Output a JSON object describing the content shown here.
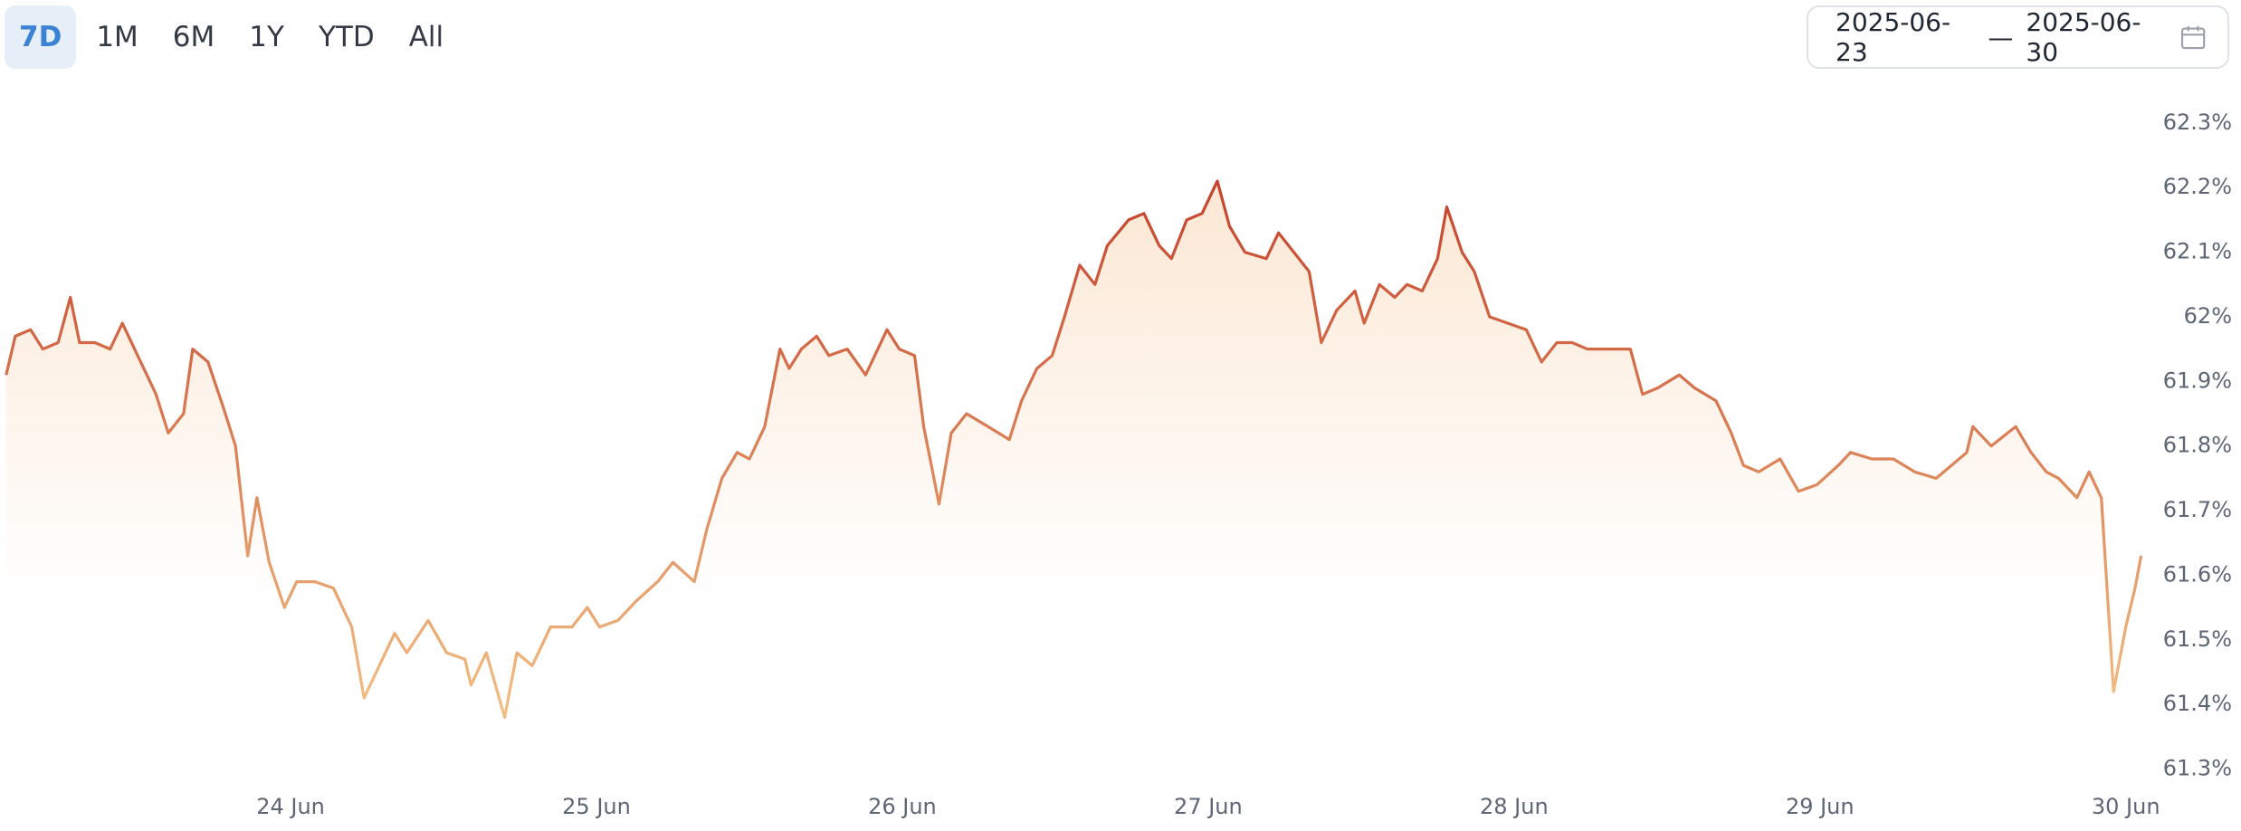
{
  "toolbar": {
    "ranges": [
      "7D",
      "1M",
      "6M",
      "1Y",
      "YTD",
      "All"
    ],
    "active": 0
  },
  "date_range": {
    "start": "2025-06-23",
    "separator": "—",
    "end": "2025-06-30"
  },
  "chart_data": {
    "type": "area",
    "x": [
      23.07,
      23.1,
      23.15,
      23.19,
      23.24,
      23.28,
      23.31,
      23.36,
      23.41,
      23.45,
      23.5,
      23.56,
      23.6,
      23.65,
      23.68,
      23.73,
      23.78,
      23.82,
      23.86,
      23.89,
      23.93,
      23.98,
      24.02,
      24.08,
      24.14,
      24.2,
      24.24,
      24.28,
      24.34,
      24.38,
      24.45,
      24.51,
      24.57,
      24.59,
      24.64,
      24.7,
      24.74,
      24.79,
      24.85,
      24.92,
      24.97,
      25.01,
      25.07,
      25.13,
      25.2,
      25.25,
      25.32,
      25.36,
      25.41,
      25.46,
      25.5,
      25.55,
      25.6,
      25.63,
      25.67,
      25.72,
      25.76,
      25.82,
      25.88,
      25.95,
      25.99,
      26.04,
      26.07,
      26.12,
      26.16,
      26.21,
      26.28,
      26.35,
      26.39,
      26.44,
      26.49,
      26.53,
      26.58,
      26.63,
      26.67,
      26.74,
      26.79,
      26.84,
      26.88,
      26.93,
      26.98,
      27.03,
      27.07,
      27.12,
      27.19,
      27.23,
      27.28,
      27.33,
      27.37,
      27.42,
      27.48,
      27.51,
      27.56,
      27.61,
      27.65,
      27.7,
      27.75,
      27.78,
      27.83,
      27.87,
      27.92,
      27.98,
      28.04,
      28.09,
      28.14,
      28.19,
      28.24,
      28.31,
      28.38,
      28.42,
      28.47,
      28.54,
      28.59,
      28.66,
      28.71,
      28.75,
      28.8,
      28.87,
      28.93,
      28.99,
      29.06,
      29.1,
      29.17,
      29.24,
      29.31,
      29.38,
      29.43,
      29.48,
      29.5,
      29.56,
      29.64,
      29.69,
      29.74,
      29.78,
      29.84,
      29.88,
      29.92,
      29.96,
      30.0,
      30.03,
      30.05
    ],
    "values": [
      61.91,
      61.97,
      61.98,
      61.95,
      61.96,
      62.03,
      61.96,
      61.96,
      61.95,
      61.99,
      61.94,
      61.88,
      61.82,
      61.85,
      61.95,
      61.93,
      61.86,
      61.8,
      61.63,
      61.72,
      61.62,
      61.55,
      61.59,
      61.59,
      61.58,
      61.52,
      61.41,
      61.45,
      61.51,
      61.48,
      61.53,
      61.48,
      61.47,
      61.43,
      61.48,
      61.38,
      61.48,
      61.46,
      61.52,
      61.52,
      61.55,
      61.52,
      61.53,
      61.56,
      61.59,
      61.62,
      61.59,
      61.67,
      61.75,
      61.79,
      61.78,
      61.83,
      61.95,
      61.92,
      61.95,
      61.97,
      61.94,
      61.95,
      61.91,
      61.98,
      61.95,
      61.94,
      61.83,
      61.71,
      61.82,
      61.85,
      61.83,
      61.81,
      61.87,
      61.92,
      61.94,
      62.0,
      62.08,
      62.05,
      62.11,
      62.15,
      62.16,
      62.11,
      62.09,
      62.15,
      62.16,
      62.21,
      62.14,
      62.1,
      62.09,
      62.13,
      62.1,
      62.07,
      61.96,
      62.01,
      62.04,
      61.99,
      62.05,
      62.03,
      62.05,
      62.04,
      62.09,
      62.17,
      62.1,
      62.07,
      62.0,
      61.99,
      61.98,
      61.93,
      61.96,
      61.96,
      61.95,
      61.95,
      61.95,
      61.88,
      61.89,
      61.91,
      61.89,
      61.87,
      61.82,
      61.77,
      61.76,
      61.78,
      61.73,
      61.74,
      61.77,
      61.79,
      61.78,
      61.78,
      61.76,
      61.75,
      61.77,
      61.79,
      61.83,
      61.8,
      61.83,
      61.79,
      61.76,
      61.75,
      61.72,
      61.76,
      61.72,
      61.42,
      61.52,
      61.58,
      61.63
    ],
    "xlim": [
      23.05,
      30.06
    ],
    "xticks": [
      {
        "value": 24,
        "label": "24 Jun"
      },
      {
        "value": 25,
        "label": "25 Jun"
      },
      {
        "value": 26,
        "label": "26 Jun"
      },
      {
        "value": 27,
        "label": "27 Jun"
      },
      {
        "value": 28,
        "label": "28 Jun"
      },
      {
        "value": 29,
        "label": "29 Jun"
      },
      {
        "value": 30,
        "label": "30 Jun"
      }
    ],
    "ylim": [
      61.27,
      62.36
    ],
    "yticks": [
      {
        "value": 61.3,
        "label": "61.3%"
      },
      {
        "value": 61.4,
        "label": "61.4%"
      },
      {
        "value": 61.5,
        "label": "61.5%"
      },
      {
        "value": 61.6,
        "label": "61.6%"
      },
      {
        "value": 61.7,
        "label": "61.7%"
      },
      {
        "value": 61.8,
        "label": "61.8%"
      },
      {
        "value": 61.9,
        "label": "61.9%"
      },
      {
        "value": 62,
        "label": "62%"
      },
      {
        "value": 62.1,
        "label": "62.1%"
      },
      {
        "value": 62.2,
        "label": "62.2%"
      },
      {
        "value": 62.3,
        "label": "62.3%"
      }
    ],
    "line_colors": [
      "#c4402a",
      "#f3c184"
    ],
    "fill_color": "#fbe3cc",
    "grid": false
  }
}
